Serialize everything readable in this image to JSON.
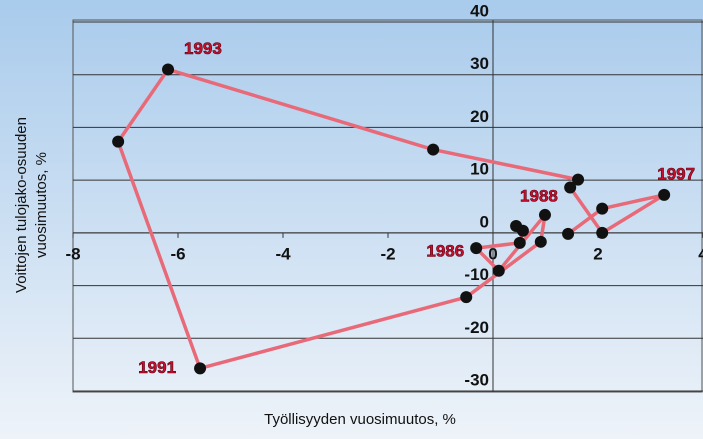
{
  "chart_data": {
    "type": "line",
    "xlabel": "Työllisyyden vuosimuutos, %",
    "ylabel": [
      "Voittojen tulojako-osuuden",
      "vuosimuutos, %"
    ],
    "x": [
      0.44,
      0.57,
      0.51,
      -0.32,
      0.11,
      0.99,
      0.91,
      -0.51,
      -5.58,
      -7.14,
      -6.19,
      -1.14,
      1.62,
      1.47,
      2.08,
      3.26,
      2.08,
      1.43
    ],
    "series": [
      {
        "color": "#e86a78",
        "values": [
          1.3,
          0.4,
          -1.9,
          -2.9,
          -7.2,
          3.4,
          -1.7,
          -12.2,
          -25.7,
          17.3,
          31.0,
          15.8,
          10.1,
          8.6,
          0,
          7.2,
          4.6,
          -0.2
        ]
      }
    ],
    "point_labels": [
      null,
      null,
      null,
      "1986",
      null,
      "1988",
      null,
      null,
      "1991",
      null,
      "1993",
      null,
      null,
      null,
      null,
      "1997",
      null,
      null
    ],
    "xlim": [
      -8,
      4
    ],
    "xticks": [
      -8,
      -6,
      -4,
      -2,
      0,
      2,
      4
    ],
    "ylim": [
      -30,
      40
    ],
    "yticks": [
      40,
      30,
      20,
      10,
      0,
      -10,
      -20,
      -30
    ],
    "grid": true
  }
}
